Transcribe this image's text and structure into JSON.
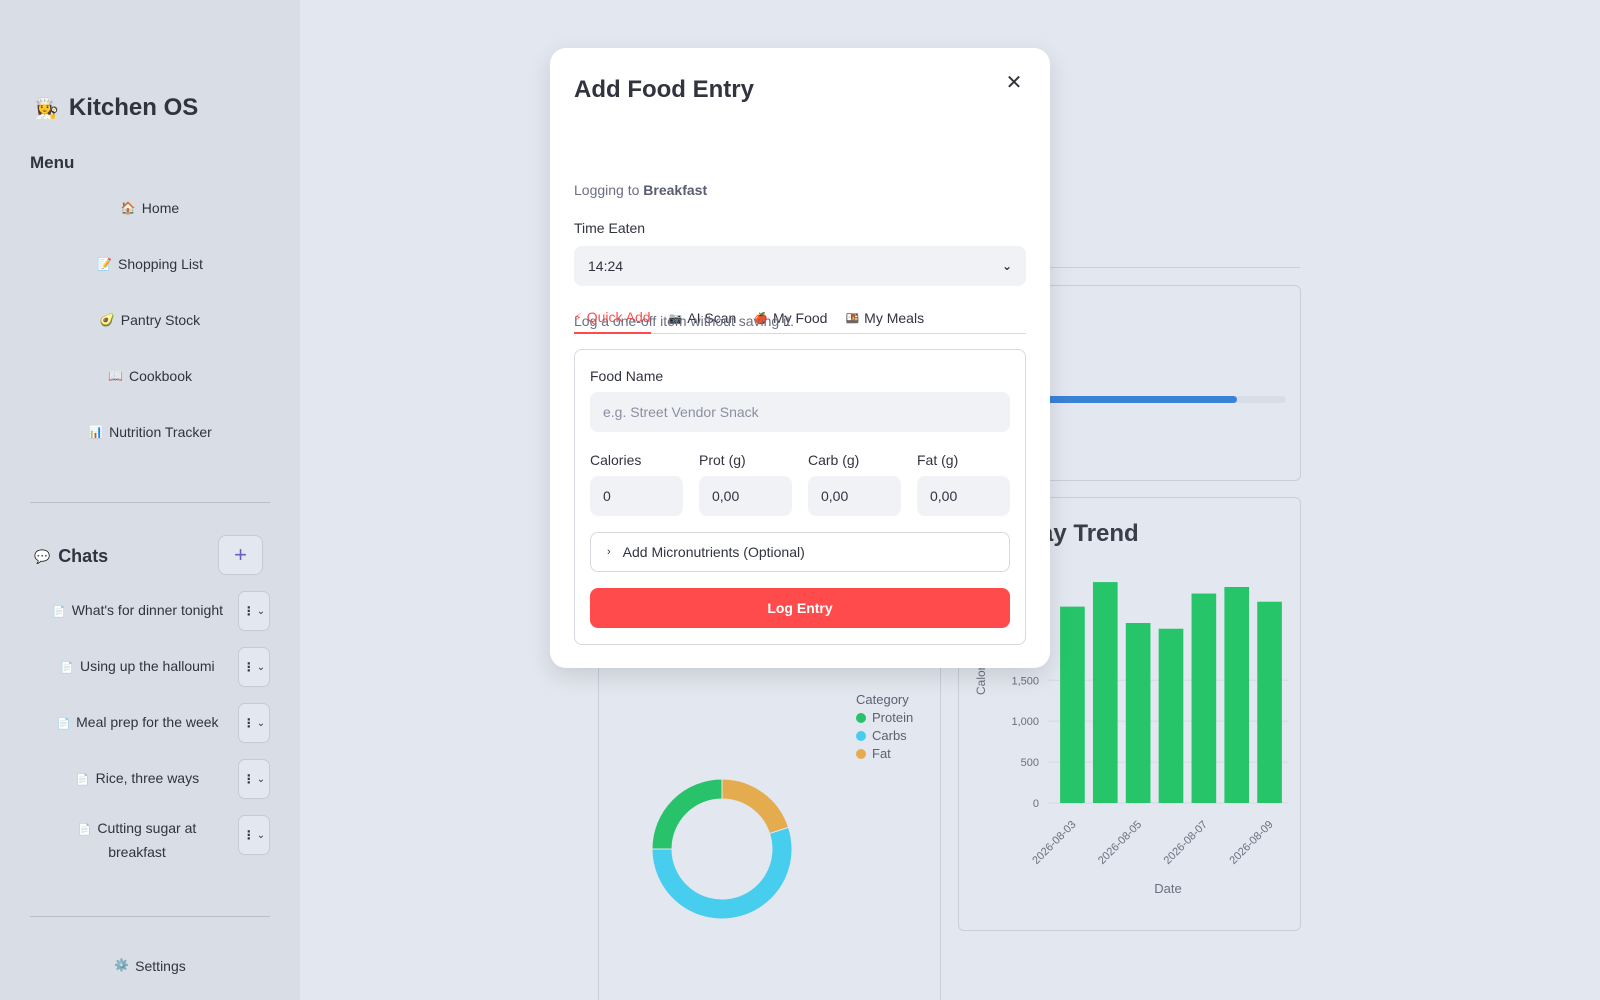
{
  "sidebar": {
    "brand": {
      "icon": "👩‍🍳",
      "title": "Kitchen OS"
    },
    "menu_title": "Menu",
    "nav": [
      {
        "icon": "🏠",
        "label": "Home"
      },
      {
        "icon": "📝",
        "label": "Shopping List"
      },
      {
        "icon": "🥑",
        "label": "Pantry Stock"
      },
      {
        "icon": "📖",
        "label": "Cookbook"
      },
      {
        "icon": "📊",
        "label": "Nutrition Tracker"
      }
    ],
    "chats_title": "Chats",
    "chats_icon": "💬",
    "new_chat_label": "+",
    "chats": [
      {
        "icon": "📄",
        "label": "What's for dinner tonight"
      },
      {
        "icon": "📄",
        "label": "Using up the halloumi"
      },
      {
        "icon": "📄",
        "label": "Meal prep for the week"
      },
      {
        "icon": "📄",
        "label": "Rice, three ways"
      },
      {
        "icon": "📄",
        "label": "Cutting sugar at breakfast"
      }
    ],
    "chat_menu_icon": "⋮",
    "chat_menu_chevron": "⌄",
    "settings": {
      "icon": "⚙️",
      "label": "Settings"
    }
  },
  "background": {
    "trend_title_fragment": "ay Trend",
    "progress_fraction": 0.8,
    "progress_color": "#3b82d6",
    "macro_legend": {
      "title": "Category",
      "items": [
        {
          "label": "Protein",
          "color": "#27c26a"
        },
        {
          "label": "Carbs",
          "color": "#47cdee"
        },
        {
          "label": "Fat",
          "color": "#e5ac4f"
        }
      ]
    }
  },
  "chart_data": [
    {
      "type": "pie",
      "legend_title": "Category",
      "categories": [
        "Protein",
        "Carbs",
        "Fat"
      ],
      "values": [
        25,
        55,
        20
      ],
      "colors": [
        "#27c26a",
        "#47cdee",
        "#e5ac4f"
      ]
    },
    {
      "type": "bar",
      "xlabel": "Date",
      "ylabel": "Calori",
      "categories": [
        "2026-08-03",
        "2026-08-04",
        "2026-08-05",
        "2026-08-06",
        "2026-08-07",
        "2026-08-08",
        "2026-08-09"
      ],
      "tick_labels_x": [
        "2026-08-03",
        "2026-08-05",
        "2026-08-07",
        "2026-08-09"
      ],
      "y_ticks": [
        "0",
        "500",
        "1,000",
        "1,500"
      ],
      "values": [
        2400,
        2700,
        2200,
        2130,
        2560,
        2640,
        2460
      ],
      "ylim": [
        0,
        2750
      ],
      "color": "#27c56a"
    }
  ],
  "modal": {
    "title": "Add Food Entry",
    "close_icon": "✕",
    "logging_prefix": "Logging to",
    "logging_target": "Breakfast",
    "time_label": "Time Eaten",
    "time_value": "14:24",
    "select_chevron": "⌄",
    "tabs": [
      {
        "icon": "⚡",
        "label": "Quick Add",
        "active": true
      },
      {
        "icon": "📷",
        "label": "AI Scan",
        "active": false
      },
      {
        "icon": "🍎",
        "label": "My Food",
        "active": false
      },
      {
        "icon": "🍱",
        "label": "My Meals",
        "active": false
      }
    ],
    "subtext": "Log a one-off item without saving it.",
    "food_name_label": "Food Name",
    "food_name_placeholder": "e.g. Street Vendor Snack",
    "fields": [
      {
        "label": "Calories",
        "value": "0"
      },
      {
        "label": "Prot (g)",
        "value": "0,00"
      },
      {
        "label": "Carb (g)",
        "value": "0,00"
      },
      {
        "label": "Fat (g)",
        "value": "0,00"
      }
    ],
    "expander_chevron": "›",
    "expander_label": "Add Micronutrients (Optional)",
    "submit_label": "Log Entry"
  }
}
